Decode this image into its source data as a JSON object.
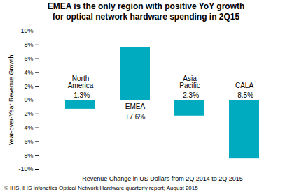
{
  "chart_data": {
    "type": "bar",
    "title": "EMEA is the only region with positive YoY growth\nfor optical network hardware spending in 2Q15",
    "categories": [
      "North\nAmerica",
      "EMEA",
      "Asia\nPacific",
      "CALA"
    ],
    "values": [
      -1.3,
      7.6,
      -2.3,
      -8.5
    ],
    "value_labels": [
      "-1.3%",
      "+7.6%",
      "-2.3%",
      "-8.5%"
    ],
    "data_labels": true,
    "color": "#00AABF",
    "ylabel": "Year-over-Year Revenue Growth",
    "xlabel": "Revenue Change in US Dollars from 2Q 2014 to 2Q 2015",
    "ylim": [
      -10,
      10
    ],
    "yticks": [
      {
        "value": -10,
        "label": "-10%"
      },
      {
        "value": -8,
        "label": "-8%"
      },
      {
        "value": -6,
        "label": "-6%"
      },
      {
        "value": -4,
        "label": "-4%"
      },
      {
        "value": -2,
        "label": "-2%"
      },
      {
        "value": 0,
        "label": "0%"
      },
      {
        "value": 2,
        "label": "2%"
      },
      {
        "value": 4,
        "label": "4%"
      },
      {
        "value": 6,
        "label": "6%"
      },
      {
        "value": 8,
        "label": "8%"
      },
      {
        "value": 10,
        "label": "10%"
      }
    ],
    "tick_labels": "y",
    "grid": false,
    "caption": "© IHS, IHS Infonetics Optical Network Hardware quarterly report; August 2015"
  }
}
